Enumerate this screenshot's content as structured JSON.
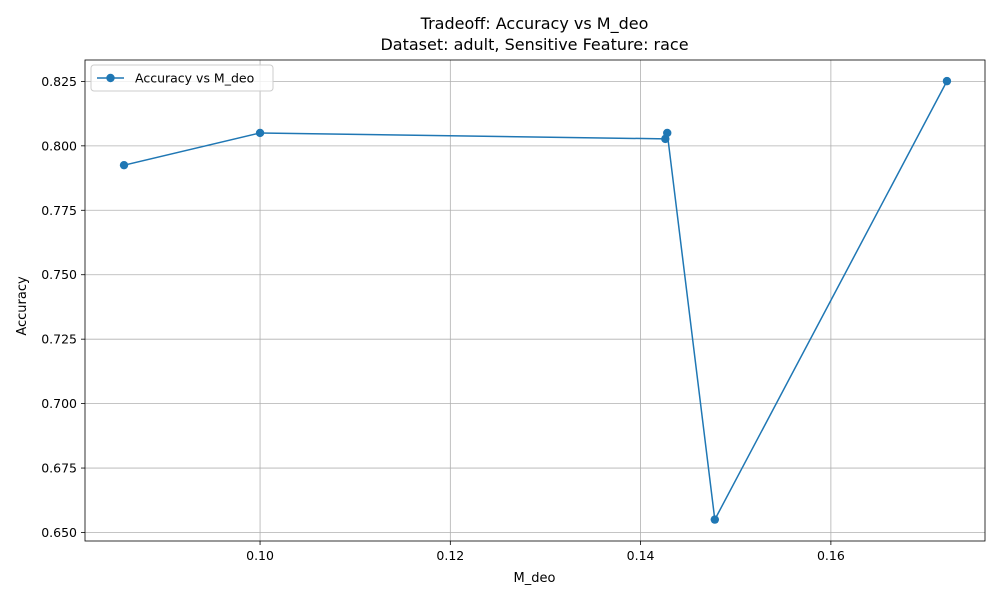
{
  "chart_data": {
    "type": "line",
    "title": "Tradeoff: Accuracy vs M_deo",
    "subtitle": "Dataset: adult, Sensitive Feature: race",
    "xlabel": "M_deo",
    "ylabel": "Accuracy",
    "xlim": [
      0.0816,
      0.1762
    ],
    "ylim": [
      0.6467,
      0.8333
    ],
    "xticks": [
      0.1,
      0.12,
      0.14,
      0.16
    ],
    "xtick_labels": [
      "0.10",
      "0.12",
      "0.14",
      "0.16"
    ],
    "yticks": [
      0.65,
      0.675,
      0.7,
      0.725,
      0.75,
      0.775,
      0.8,
      0.825
    ],
    "ytick_labels": [
      "0.650",
      "0.675",
      "0.700",
      "0.725",
      "0.750",
      "0.775",
      "0.800",
      "0.825"
    ],
    "grid": true,
    "legend_position": "top-left",
    "series": [
      {
        "name": "Accuracy vs M_deo",
        "color": "#1f77b4",
        "marker": "circle",
        "x": [
          0.0857,
          0.1,
          0.1426,
          0.1428,
          0.1478,
          0.1722
        ],
        "y": [
          0.7925,
          0.805,
          0.8027,
          0.805,
          0.655,
          0.8251
        ]
      }
    ]
  }
}
